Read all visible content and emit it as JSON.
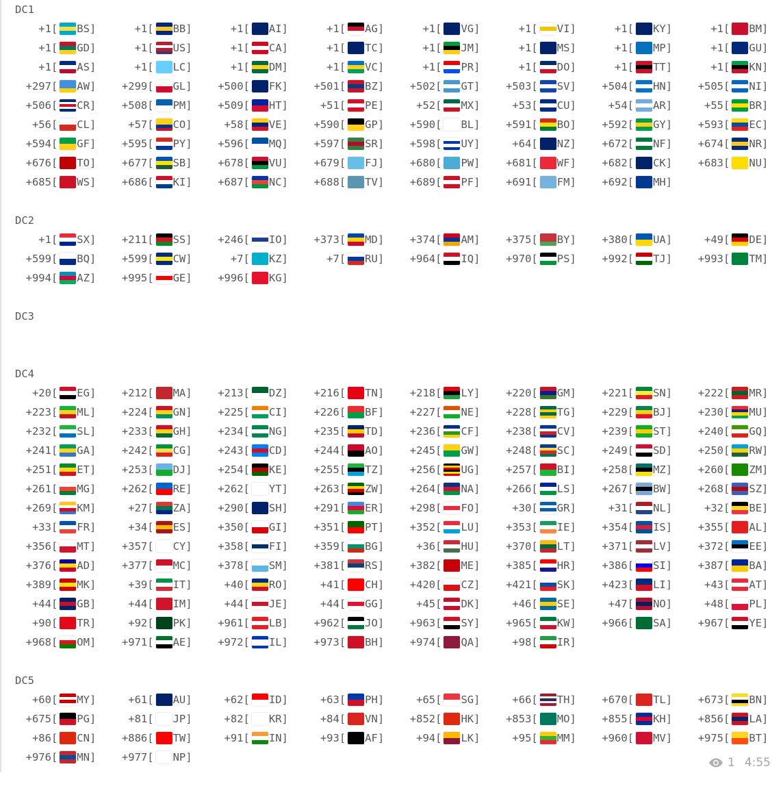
{
  "sections": [
    {
      "label": "DC1",
      "rows": [
        [
          {
            "code": "+1",
            "iso": "BS"
          },
          {
            "code": "+1",
            "iso": "BB"
          },
          {
            "code": "+1",
            "iso": "AI"
          },
          {
            "code": "+1",
            "iso": "AG"
          },
          {
            "code": "+1",
            "iso": "VG"
          },
          {
            "code": "+1",
            "iso": "VI"
          },
          {
            "code": "+1",
            "iso": "KY"
          },
          {
            "code": "+1",
            "iso": "BM"
          }
        ],
        [
          {
            "code": "+1",
            "iso": "GD"
          },
          {
            "code": "+1",
            "iso": "US"
          },
          {
            "code": "+1",
            "iso": "CA"
          },
          {
            "code": "+1",
            "iso": "TC"
          },
          {
            "code": "+1",
            "iso": "JM"
          },
          {
            "code": "+1",
            "iso": "MS"
          },
          {
            "code": "+1",
            "iso": "MP"
          },
          {
            "code": "+1",
            "iso": "GU"
          }
        ],
        [
          {
            "code": "+1",
            "iso": "AS"
          },
          {
            "code": "+1",
            "iso": "LC"
          },
          {
            "code": "+1",
            "iso": "DM"
          },
          {
            "code": "+1",
            "iso": "VC"
          },
          {
            "code": "+1",
            "iso": "PR"
          },
          {
            "code": "+1",
            "iso": "DO"
          },
          {
            "code": "+1",
            "iso": "TT"
          },
          {
            "code": "+1",
            "iso": "KN"
          }
        ],
        [
          {
            "code": "+297",
            "iso": "AW"
          },
          {
            "code": "+299",
            "iso": "GL"
          },
          {
            "code": "+500",
            "iso": "FK"
          },
          {
            "code": "+501",
            "iso": "BZ"
          },
          {
            "code": "+502",
            "iso": "GT"
          },
          {
            "code": "+503",
            "iso": "SV"
          },
          {
            "code": "+504",
            "iso": "HN"
          },
          {
            "code": "+505",
            "iso": "NI"
          }
        ],
        [
          {
            "code": "+506",
            "iso": "CR"
          },
          {
            "code": "+508",
            "iso": "PM"
          },
          {
            "code": "+509",
            "iso": "HT"
          },
          {
            "code": "+51",
            "iso": "PE"
          },
          {
            "code": "+52",
            "iso": "MX"
          },
          {
            "code": "+53",
            "iso": "CU"
          },
          {
            "code": "+54",
            "iso": "AR"
          },
          {
            "code": "+55",
            "iso": "BR"
          }
        ],
        [
          {
            "code": "+56",
            "iso": "CL"
          },
          {
            "code": "+57",
            "iso": "CO"
          },
          {
            "code": "+58",
            "iso": "VE"
          },
          {
            "code": "+590",
            "iso": "GP"
          },
          {
            "code": "+590",
            "iso": "BL"
          },
          {
            "code": "+591",
            "iso": "BO"
          },
          {
            "code": "+592",
            "iso": "GY"
          },
          {
            "code": "+593",
            "iso": "EC"
          }
        ],
        [
          {
            "code": "+594",
            "iso": "GF"
          },
          {
            "code": "+595",
            "iso": "PY"
          },
          {
            "code": "+596",
            "iso": "MQ"
          },
          {
            "code": "+597",
            "iso": "SR"
          },
          {
            "code": "+598",
            "iso": "UY"
          },
          {
            "code": "+64",
            "iso": "NZ"
          },
          {
            "code": "+672",
            "iso": "NF"
          },
          {
            "code": "+674",
            "iso": "NR"
          }
        ],
        [
          {
            "code": "+676",
            "iso": "TO"
          },
          {
            "code": "+677",
            "iso": "SB"
          },
          {
            "code": "+678",
            "iso": "VU"
          },
          {
            "code": "+679",
            "iso": "FJ"
          },
          {
            "code": "+680",
            "iso": "PW"
          },
          {
            "code": "+681",
            "iso": "WF"
          },
          {
            "code": "+682",
            "iso": "CK"
          },
          {
            "code": "+683",
            "iso": "NU"
          }
        ],
        [
          {
            "code": "+685",
            "iso": "WS"
          },
          {
            "code": "+686",
            "iso": "KI"
          },
          {
            "code": "+687",
            "iso": "NC"
          },
          {
            "code": "+688",
            "iso": "TV"
          },
          {
            "code": "+689",
            "iso": "PF"
          },
          {
            "code": "+691",
            "iso": "FM"
          },
          {
            "code": "+692",
            "iso": "MH"
          }
        ]
      ]
    },
    {
      "label": "DC2",
      "rows": [
        [
          {
            "code": "+1",
            "iso": "SX"
          },
          {
            "code": "+211",
            "iso": "SS"
          },
          {
            "code": "+246",
            "iso": "IO"
          },
          {
            "code": "+373",
            "iso": "MD"
          },
          {
            "code": "+374",
            "iso": "AM"
          },
          {
            "code": "+375",
            "iso": "BY"
          },
          {
            "code": "+380",
            "iso": "UA"
          },
          {
            "code": "+49",
            "iso": "DE"
          }
        ],
        [
          {
            "code": "+599",
            "iso": "BQ"
          },
          {
            "code": "+599",
            "iso": "CW"
          },
          {
            "code": "+7",
            "iso": "KZ"
          },
          {
            "code": "+7",
            "iso": "RU"
          },
          {
            "code": "+964",
            "iso": "IQ"
          },
          {
            "code": "+970",
            "iso": "PS"
          },
          {
            "code": "+992",
            "iso": "TJ"
          },
          {
            "code": "+993",
            "iso": "TM"
          }
        ],
        [
          {
            "code": "+994",
            "iso": "AZ"
          },
          {
            "code": "+995",
            "iso": "GE"
          },
          {
            "code": "+996",
            "iso": "KG"
          }
        ]
      ]
    },
    {
      "label": "DC3",
      "rows": []
    },
    {
      "label": "DC4",
      "rows": [
        [
          {
            "code": "+20",
            "iso": "EG"
          },
          {
            "code": "+212",
            "iso": "MA"
          },
          {
            "code": "+213",
            "iso": "DZ"
          },
          {
            "code": "+216",
            "iso": "TN"
          },
          {
            "code": "+218",
            "iso": "LY"
          },
          {
            "code": "+220",
            "iso": "GM"
          },
          {
            "code": "+221",
            "iso": "SN"
          },
          {
            "code": "+222",
            "iso": "MR"
          }
        ],
        [
          {
            "code": "+223",
            "iso": "ML"
          },
          {
            "code": "+224",
            "iso": "GN"
          },
          {
            "code": "+225",
            "iso": "CI"
          },
          {
            "code": "+226",
            "iso": "BF"
          },
          {
            "code": "+227",
            "iso": "NE"
          },
          {
            "code": "+228",
            "iso": "TG"
          },
          {
            "code": "+229",
            "iso": "BJ"
          },
          {
            "code": "+230",
            "iso": "MU"
          }
        ],
        [
          {
            "code": "+232",
            "iso": "SL"
          },
          {
            "code": "+233",
            "iso": "GH"
          },
          {
            "code": "+234",
            "iso": "NG"
          },
          {
            "code": "+235",
            "iso": "TD"
          },
          {
            "code": "+236",
            "iso": "CF"
          },
          {
            "code": "+238",
            "iso": "CV"
          },
          {
            "code": "+239",
            "iso": "ST"
          },
          {
            "code": "+240",
            "iso": "GQ"
          }
        ],
        [
          {
            "code": "+241",
            "iso": "GA"
          },
          {
            "code": "+242",
            "iso": "CG"
          },
          {
            "code": "+243",
            "iso": "CD"
          },
          {
            "code": "+244",
            "iso": "AO"
          },
          {
            "code": "+245",
            "iso": "GW"
          },
          {
            "code": "+248",
            "iso": "SC"
          },
          {
            "code": "+249",
            "iso": "SD"
          },
          {
            "code": "+250",
            "iso": "RW"
          }
        ],
        [
          {
            "code": "+251",
            "iso": "ET"
          },
          {
            "code": "+253",
            "iso": "DJ"
          },
          {
            "code": "+254",
            "iso": "KE"
          },
          {
            "code": "+255",
            "iso": "TZ"
          },
          {
            "code": "+256",
            "iso": "UG"
          },
          {
            "code": "+257",
            "iso": "BI"
          },
          {
            "code": "+258",
            "iso": "MZ"
          },
          {
            "code": "+260",
            "iso": "ZM"
          }
        ],
        [
          {
            "code": "+261",
            "iso": "MG"
          },
          {
            "code": "+262",
            "iso": "RE"
          },
          {
            "code": "+262",
            "iso": "YT"
          },
          {
            "code": "+263",
            "iso": "ZW"
          },
          {
            "code": "+264",
            "iso": "NA"
          },
          {
            "code": "+266",
            "iso": "LS"
          },
          {
            "code": "+267",
            "iso": "BW"
          },
          {
            "code": "+268",
            "iso": "SZ"
          }
        ],
        [
          {
            "code": "+269",
            "iso": "KM"
          },
          {
            "code": "+27",
            "iso": "ZA"
          },
          {
            "code": "+290",
            "iso": "SH"
          },
          {
            "code": "+291",
            "iso": "ER"
          },
          {
            "code": "+298",
            "iso": "FO"
          },
          {
            "code": "+30",
            "iso": "GR"
          },
          {
            "code": "+31",
            "iso": "NL"
          },
          {
            "code": "+32",
            "iso": "BE"
          }
        ],
        [
          {
            "code": "+33",
            "iso": "FR"
          },
          {
            "code": "+34",
            "iso": "ES"
          },
          {
            "code": "+350",
            "iso": "GI"
          },
          {
            "code": "+351",
            "iso": "PT"
          },
          {
            "code": "+352",
            "iso": "LU"
          },
          {
            "code": "+353",
            "iso": "IE"
          },
          {
            "code": "+354",
            "iso": "IS"
          },
          {
            "code": "+355",
            "iso": "AL"
          }
        ],
        [
          {
            "code": "+356",
            "iso": "MT"
          },
          {
            "code": "+357",
            "iso": "CY"
          },
          {
            "code": "+358",
            "iso": "FI"
          },
          {
            "code": "+359",
            "iso": "BG"
          },
          {
            "code": "+36",
            "iso": "HU"
          },
          {
            "code": "+370",
            "iso": "LT"
          },
          {
            "code": "+371",
            "iso": "LV"
          },
          {
            "code": "+372",
            "iso": "EE"
          }
        ],
        [
          {
            "code": "+376",
            "iso": "AD"
          },
          {
            "code": "+377",
            "iso": "MC"
          },
          {
            "code": "+378",
            "iso": "SM"
          },
          {
            "code": "+381",
            "iso": "RS"
          },
          {
            "code": "+382",
            "iso": "ME"
          },
          {
            "code": "+385",
            "iso": "HR"
          },
          {
            "code": "+386",
            "iso": "SI"
          },
          {
            "code": "+387",
            "iso": "BA"
          }
        ],
        [
          {
            "code": "+389",
            "iso": "MK"
          },
          {
            "code": "+39",
            "iso": "IT"
          },
          {
            "code": "+40",
            "iso": "RO"
          },
          {
            "code": "+41",
            "iso": "CH"
          },
          {
            "code": "+420",
            "iso": "CZ"
          },
          {
            "code": "+421",
            "iso": "SK"
          },
          {
            "code": "+423",
            "iso": "LI"
          },
          {
            "code": "+43",
            "iso": "AT"
          }
        ],
        [
          {
            "code": "+44",
            "iso": "GB"
          },
          {
            "code": "+44",
            "iso": "IM"
          },
          {
            "code": "+44",
            "iso": "JE"
          },
          {
            "code": "+44",
            "iso": "GG"
          },
          {
            "code": "+45",
            "iso": "DK"
          },
          {
            "code": "+46",
            "iso": "SE"
          },
          {
            "code": "+47",
            "iso": "NO"
          },
          {
            "code": "+48",
            "iso": "PL"
          }
        ],
        [
          {
            "code": "+90",
            "iso": "TR"
          },
          {
            "code": "+92",
            "iso": "PK"
          },
          {
            "code": "+961",
            "iso": "LB"
          },
          {
            "code": "+962",
            "iso": "JO"
          },
          {
            "code": "+963",
            "iso": "SY"
          },
          {
            "code": "+965",
            "iso": "KW"
          },
          {
            "code": "+966",
            "iso": "SA"
          },
          {
            "code": "+967",
            "iso": "YE"
          }
        ],
        [
          {
            "code": "+968",
            "iso": "OM"
          },
          {
            "code": "+971",
            "iso": "AE"
          },
          {
            "code": "+972",
            "iso": "IL"
          },
          {
            "code": "+973",
            "iso": "BH"
          },
          {
            "code": "+974",
            "iso": "QA"
          },
          {
            "code": "+98",
            "iso": "IR"
          }
        ]
      ]
    },
    {
      "label": "DC5",
      "rows": [
        [
          {
            "code": "+60",
            "iso": "MY"
          },
          {
            "code": "+61",
            "iso": "AU"
          },
          {
            "code": "+62",
            "iso": "ID"
          },
          {
            "code": "+63",
            "iso": "PH"
          },
          {
            "code": "+65",
            "iso": "SG"
          },
          {
            "code": "+66",
            "iso": "TH"
          },
          {
            "code": "+670",
            "iso": "TL"
          },
          {
            "code": "+673",
            "iso": "BN"
          }
        ],
        [
          {
            "code": "+675",
            "iso": "PG"
          },
          {
            "code": "+81",
            "iso": "JP"
          },
          {
            "code": "+82",
            "iso": "KR"
          },
          {
            "code": "+84",
            "iso": "VN"
          },
          {
            "code": "+852",
            "iso": "HK"
          },
          {
            "code": "+853",
            "iso": "MO"
          },
          {
            "code": "+855",
            "iso": "KH"
          },
          {
            "code": "+856",
            "iso": "LA"
          }
        ],
        [
          {
            "code": "+86",
            "iso": "CN"
          },
          {
            "code": "+886",
            "iso": "TW"
          },
          {
            "code": "+91",
            "iso": "IN"
          },
          {
            "code": "+93",
            "iso": "AF"
          },
          {
            "code": "+94",
            "iso": "LK"
          },
          {
            "code": "+95",
            "iso": "MM"
          },
          {
            "code": "+960",
            "iso": "MV"
          },
          {
            "code": "+975",
            "iso": "BT"
          }
        ],
        [
          {
            "code": "+976",
            "iso": "MN"
          },
          {
            "code": "+977",
            "iso": "NP"
          }
        ]
      ]
    }
  ],
  "footer": {
    "views_icon": "eye-icon",
    "views": "1",
    "time": "4:55"
  },
  "colors": {
    "text": "#585858",
    "meta": "#a6a6a6"
  }
}
